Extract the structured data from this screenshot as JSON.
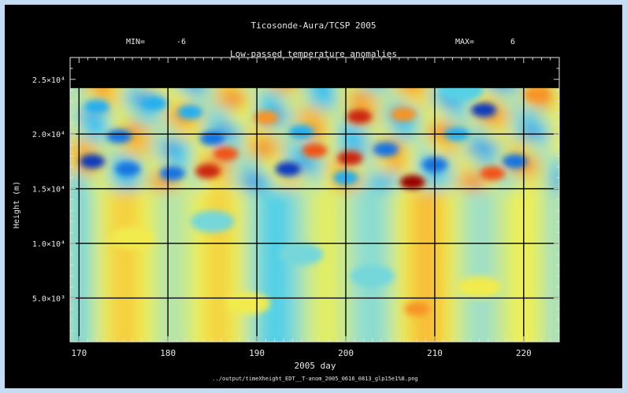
{
  "header": {
    "title": "Ticosonde-Aura/TCSP 2005",
    "min_label": "MIN=",
    "min_value": "-6",
    "max_label": "MAX=",
    "max_value": "6",
    "subtitle": "Low-passed temperature anomalies"
  },
  "footer": {
    "file_path": "../output/timeXheight_EDT__T-anom_2005_0616_0813_glp15e1%8.png"
  },
  "colors": {
    "page_background": "#c4dcf4",
    "plot_background": "#000000",
    "text": "#e8e8e8",
    "grid": "#000000",
    "colormap": [
      "#00008f",
      "#1464dc",
      "#2ec8f4",
      "#a0e0c8",
      "#f0f050",
      "#f8b030",
      "#f04010",
      "#960000"
    ]
  },
  "chart_data": {
    "type": "heatmap",
    "title": "Low-passed temperature anomalies",
    "xlabel": "2005 day",
    "ylabel": "Height (m)",
    "xlim": [
      169,
      224
    ],
    "ylim": [
      1000,
      27000
    ],
    "data_top": 24200,
    "x_ticks": [
      170,
      180,
      190,
      200,
      210,
      220
    ],
    "x_tick_labels": [
      "170",
      "180",
      "190",
      "200",
      "210",
      "220"
    ],
    "y_ticks": [
      5000,
      10000,
      15000,
      20000,
      25000
    ],
    "y_tick_labels": [
      "5.0×10³",
      "1.0×10⁴",
      "1.5×10⁴",
      "2.0×10⁴",
      "2.5×10⁴"
    ],
    "value_range": [
      -6,
      6
    ],
    "grid": true,
    "anomalies": [
      {
        "x": 171.5,
        "y": 17500,
        "value": -5
      },
      {
        "x": 175.5,
        "y": 16800,
        "value": -4
      },
      {
        "x": 174.5,
        "y": 19800,
        "value": -4
      },
      {
        "x": 180.5,
        "y": 16400,
        "value": -4
      },
      {
        "x": 172.0,
        "y": 22500,
        "value": -3
      },
      {
        "x": 178.5,
        "y": 22800,
        "value": -3
      },
      {
        "x": 184.5,
        "y": 16600,
        "value": 5
      },
      {
        "x": 186.5,
        "y": 18200,
        "value": 4
      },
      {
        "x": 185.0,
        "y": 19600,
        "value": -4
      },
      {
        "x": 182.5,
        "y": 22000,
        "value": -3
      },
      {
        "x": 193.5,
        "y": 16800,
        "value": -5
      },
      {
        "x": 196.5,
        "y": 18500,
        "value": 4
      },
      {
        "x": 195.0,
        "y": 20200,
        "value": -3
      },
      {
        "x": 191.0,
        "y": 21500,
        "value": 3
      },
      {
        "x": 200.5,
        "y": 17800,
        "value": 5
      },
      {
        "x": 201.5,
        "y": 21600,
        "value": 5
      },
      {
        "x": 204.5,
        "y": 18600,
        "value": -4
      },
      {
        "x": 200.0,
        "y": 16000,
        "value": -3
      },
      {
        "x": 207.5,
        "y": 15600,
        "value": 6
      },
      {
        "x": 210.0,
        "y": 17200,
        "value": -4
      },
      {
        "x": 206.5,
        "y": 21800,
        "value": 3
      },
      {
        "x": 215.5,
        "y": 22200,
        "value": -5
      },
      {
        "x": 216.5,
        "y": 16400,
        "value": 4
      },
      {
        "x": 219.0,
        "y": 17500,
        "value": -4
      },
      {
        "x": 221.5,
        "y": 23600,
        "value": 3
      },
      {
        "x": 212.5,
        "y": 20000,
        "value": -3
      },
      {
        "x": 213.0,
        "y": 24000,
        "value": -2
      },
      {
        "x": 176.0,
        "y": 10500,
        "value": 1
      },
      {
        "x": 185.0,
        "y": 12000,
        "value": -1.5
      },
      {
        "x": 195.0,
        "y": 9000,
        "value": -1.5
      },
      {
        "x": 208.0,
        "y": 4000,
        "value": 3
      },
      {
        "x": 215.0,
        "y": 6000,
        "value": 1
      },
      {
        "x": 203.0,
        "y": 7000,
        "value": -1.5
      },
      {
        "x": 189.0,
        "y": 4500,
        "value": 1
      }
    ]
  }
}
